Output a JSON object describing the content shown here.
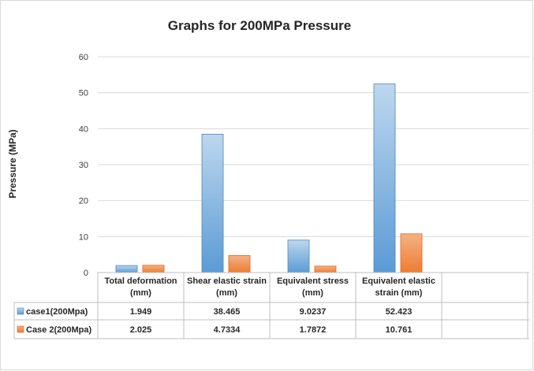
{
  "chart_data": {
    "type": "bar",
    "title": "Graphs for 200MPa Pressure",
    "xlabel": "",
    "ylabel": "Pressure (MPa)",
    "ylim": [
      0,
      60
    ],
    "yticks": [
      0,
      10,
      20,
      30,
      40,
      50,
      60
    ],
    "grid": true,
    "legend": "inside-data-table",
    "categories": [
      [
        "Total deformation",
        "(mm)"
      ],
      [
        "Shear elastic strain",
        "(mm)"
      ],
      [
        "Equivalent stress",
        "(mm)"
      ],
      [
        "Equivalent elastic",
        "strain (mm)"
      ]
    ],
    "series": [
      {
        "name": "case1(200Mpa)",
        "color": "#5b9bd5",
        "values": [
          1.949,
          38.465,
          9.0237,
          52.423
        ],
        "labels": [
          "1.949",
          "38.465",
          "9.0237",
          "52.423"
        ]
      },
      {
        "name": "Case 2(200Mpa)",
        "color": "#ed7d31",
        "values": [
          2.025,
          4.7334,
          1.7872,
          10.761
        ],
        "labels": [
          "2.025",
          "4.7334",
          "1.7872",
          "10.761"
        ]
      }
    ]
  }
}
